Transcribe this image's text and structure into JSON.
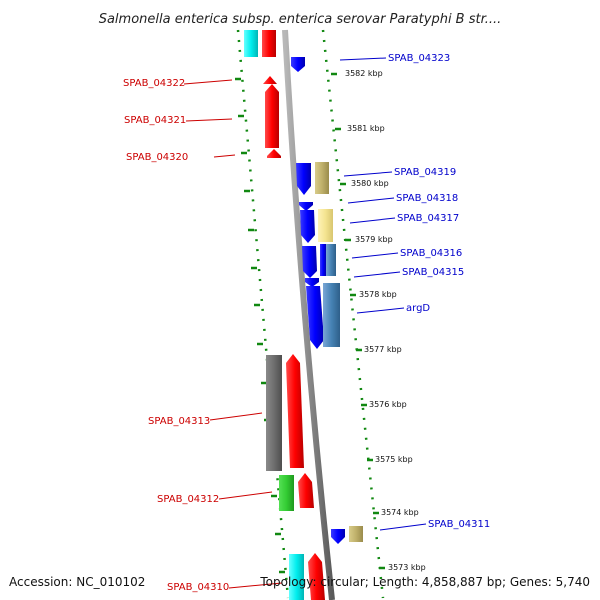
{
  "title": "Salmonella enterica subsp. enterica serovar Paratyphi B str....",
  "footer": {
    "accession": "Accession: NC_010102",
    "summary": "Topology: circular; Length: 4,858,887 bp; Genes: 5,740"
  },
  "scale": {
    "ticks": [
      {
        "label": "3582 kbp"
      },
      {
        "label": "3581 kbp"
      },
      {
        "label": "3580 kbp"
      },
      {
        "label": "3579 kbp"
      },
      {
        "label": "3578 kbp"
      },
      {
        "label": "3577 kbp"
      },
      {
        "label": "3576 kbp"
      },
      {
        "label": "3575 kbp"
      },
      {
        "label": "3574 kbp"
      },
      {
        "label": "3573 kbp"
      }
    ]
  },
  "genes_left": [
    {
      "label": "SPAB_04322",
      "color": "#cc0000"
    },
    {
      "label": "SPAB_04321",
      "color": "#cc0000"
    },
    {
      "label": "SPAB_04320",
      "color": "#cc0000"
    },
    {
      "label": "SPAB_04313",
      "color": "#cc0000"
    },
    {
      "label": "SPAB_04312",
      "color": "#cc0000"
    },
    {
      "label": "SPAB_04310",
      "color": "#cc0000"
    }
  ],
  "genes_right": [
    {
      "label": "SPAB_04323",
      "color": "#0000cc"
    },
    {
      "label": "SPAB_04319",
      "color": "#0000cc"
    },
    {
      "label": "SPAB_04318",
      "color": "#0000cc"
    },
    {
      "label": "SPAB_04317",
      "color": "#0000cc"
    },
    {
      "label": "SPAB_04316",
      "color": "#0000cc"
    },
    {
      "label": "SPAB_04315",
      "color": "#0000cc"
    },
    {
      "label": "argD",
      "color": "#0000cc"
    },
    {
      "label": "SPAB_04311",
      "color": "#0000cc"
    }
  ]
}
